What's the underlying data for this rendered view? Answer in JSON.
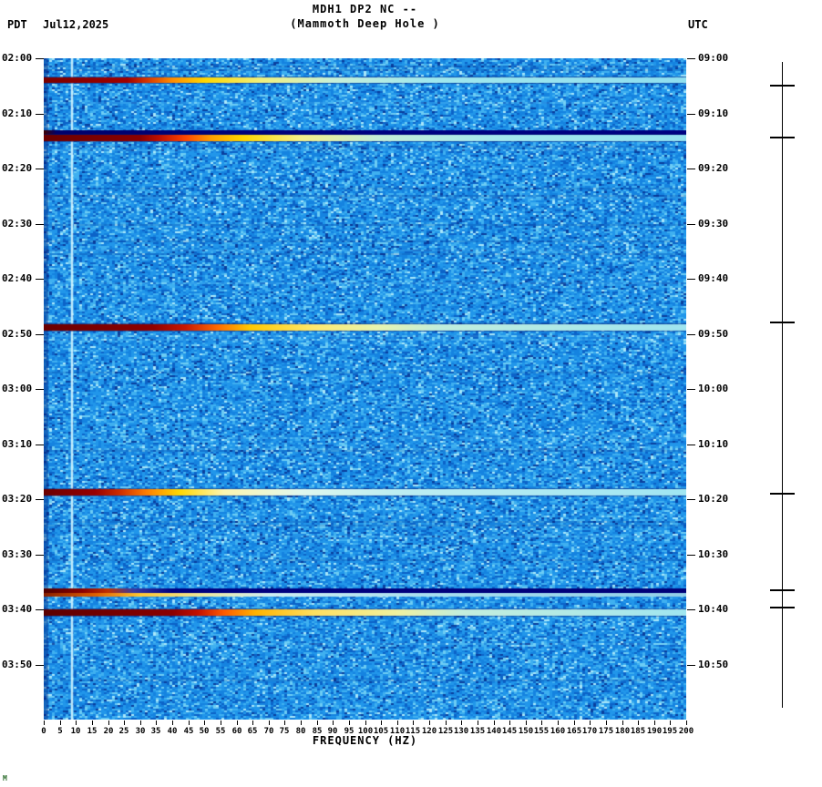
{
  "header": {
    "title": "MDH1 DP2 NC --",
    "subtitle": "(Mammoth Deep Hole )",
    "left_tz": "PDT",
    "date": "Jul12,2025",
    "right_tz": "UTC"
  },
  "axes": {
    "left_labels": [
      "02:00",
      "02:10",
      "02:20",
      "02:30",
      "02:40",
      "02:50",
      "03:00",
      "03:10",
      "03:20",
      "03:30",
      "03:40",
      "03:50"
    ],
    "right_labels": [
      "09:00",
      "09:10",
      "09:20",
      "09:30",
      "09:40",
      "09:50",
      "10:00",
      "10:10",
      "10:20",
      "10:30",
      "10:40",
      "10:50"
    ],
    "freq_labels": [
      "0",
      "5",
      "10",
      "15",
      "20",
      "25",
      "30",
      "35",
      "40",
      "45",
      "50",
      "55",
      "60",
      "65",
      "70",
      "75",
      "80",
      "85",
      "90",
      "95",
      "100",
      "105",
      "110",
      "115",
      "120",
      "125",
      "130",
      "135",
      "140",
      "145",
      "150",
      "155",
      "160",
      "165",
      "170",
      "175",
      "180",
      "185",
      "190",
      "195",
      "200"
    ],
    "xlabel": "FREQUENCY (HZ)"
  },
  "footer_mark": "M",
  "chart_data": {
    "type": "heatmap",
    "title": "MDH1 DP2 NC -- (Mammoth Deep Hole ) seismic spectrogram",
    "x_axis": {
      "label": "FREQUENCY (HZ)",
      "min": 0,
      "max": 200,
      "tick_step": 5
    },
    "y_axis_left": {
      "timezone": "PDT",
      "date": "Jul12,2025",
      "start": "02:00",
      "end": "04:00",
      "tick_step_minutes": 10
    },
    "y_axis_right": {
      "timezone": "UTC",
      "start": "09:00",
      "end": "11:00",
      "tick_step_minutes": 10
    },
    "background": {
      "base_color": "#1583e0",
      "noise_seed": 1234,
      "noise_palette": [
        [
          0.04,
          "#0a3f9e"
        ],
        [
          0.18,
          "#0c63c8"
        ],
        [
          0.45,
          "#1583e0"
        ],
        [
          0.72,
          "#2196ea"
        ],
        [
          0.88,
          "#3fb0f0"
        ],
        [
          0.97,
          "#6cccf4"
        ],
        [
          1.01,
          "#a8e6fa"
        ]
      ]
    },
    "tone_line": {
      "freq_hz": 8.5,
      "color": "rgba(210,245,255,0.85)"
    },
    "events": [
      {
        "label": "event 02:04 PDT",
        "time_min": 3.5,
        "height": 6,
        "edge": true,
        "stops": [
          [
            0,
            "#7a0000"
          ],
          [
            0.13,
            "#a00000"
          ],
          [
            0.16,
            "#d43500"
          ],
          [
            0.2,
            "#ff8c00"
          ],
          [
            0.25,
            "#ffd700"
          ],
          [
            0.34,
            "#f0f080"
          ],
          [
            0.45,
            "#c8f0d8"
          ],
          [
            0.6,
            "#a0e8ee"
          ],
          [
            1,
            "#8fdff0"
          ]
        ]
      },
      {
        "label": "navy band 02:13 PDT",
        "time_min": 13.0,
        "height": 5,
        "edge": false,
        "stops": [
          [
            0,
            "#400000"
          ],
          [
            0.02,
            "#00006b"
          ],
          [
            0.5,
            "#000080"
          ],
          [
            1,
            "#000080"
          ]
        ]
      },
      {
        "label": "event 02:14 PDT",
        "time_min": 13.9,
        "height": 7,
        "edge": true,
        "stops": [
          [
            0,
            "#6b0000"
          ],
          [
            0.15,
            "#8b0000"
          ],
          [
            0.18,
            "#c01000"
          ],
          [
            0.22,
            "#ff4500"
          ],
          [
            0.26,
            "#ff9e00"
          ],
          [
            0.31,
            "#ffd700"
          ],
          [
            0.4,
            "#f5f08a"
          ],
          [
            0.52,
            "#c5eed8"
          ],
          [
            0.7,
            "#a5e8ee"
          ],
          [
            1,
            "#93e0f0"
          ]
        ]
      },
      {
        "label": "event 02:48 PDT",
        "time_min": 48.3,
        "height": 7,
        "edge": true,
        "stops": [
          [
            0,
            "#6b0000"
          ],
          [
            0.17,
            "#900000"
          ],
          [
            0.22,
            "#c81800"
          ],
          [
            0.27,
            "#ff6a00"
          ],
          [
            0.32,
            "#ffc800"
          ],
          [
            0.42,
            "#ffe96e"
          ],
          [
            0.52,
            "#e8f5b0"
          ],
          [
            0.62,
            "#c0eedd"
          ],
          [
            1,
            "#9fe5f0"
          ]
        ]
      },
      {
        "label": "event 03:18 PDT",
        "time_min": 78.2,
        "height": 7,
        "edge": true,
        "stops": [
          [
            0,
            "#6b0000"
          ],
          [
            0.08,
            "#980000"
          ],
          [
            0.12,
            "#d03000"
          ],
          [
            0.16,
            "#ff7f00"
          ],
          [
            0.21,
            "#ffd700"
          ],
          [
            0.28,
            "#fdf6b0"
          ],
          [
            0.4,
            "#e0f8ee"
          ],
          [
            0.55,
            "#bceef2"
          ],
          [
            1,
            "#a0e6f2"
          ]
        ]
      },
      {
        "label": "navy band 03:36 PDT",
        "time_min": 96.2,
        "height": 5,
        "edge": false,
        "stops": [
          [
            0,
            "#500000"
          ],
          [
            0.06,
            "#8b0000"
          ],
          [
            0.1,
            "#c03000"
          ],
          [
            0.14,
            "#3a3aa0"
          ],
          [
            0.2,
            "#000080"
          ],
          [
            1,
            "#000078"
          ]
        ]
      },
      {
        "label": "pale band 03:37 PDT",
        "time_min": 97.1,
        "height": 4,
        "edge": false,
        "stops": [
          [
            0,
            "#8b2000"
          ],
          [
            0.08,
            "#e06000"
          ],
          [
            0.15,
            "#ffc832"
          ],
          [
            0.25,
            "#efe9a0"
          ],
          [
            0.35,
            "#cfeef2"
          ],
          [
            0.6,
            "#a8dff0"
          ],
          [
            1,
            "#92cfe8"
          ]
        ]
      },
      {
        "label": "event 03:40 PDT",
        "time_min": 100.0,
        "height": 7,
        "edge": true,
        "stops": [
          [
            0,
            "#5c0000"
          ],
          [
            0.2,
            "#8b0000"
          ],
          [
            0.24,
            "#c41000"
          ],
          [
            0.28,
            "#ff5a00"
          ],
          [
            0.33,
            "#ffb400"
          ],
          [
            0.42,
            "#ffe060"
          ],
          [
            0.55,
            "#f0f2a0"
          ],
          [
            0.65,
            "#c4eedd"
          ],
          [
            1,
            "#a0e6f0"
          ]
        ]
      }
    ],
    "event_markers_min": [
      4.8,
      14.2,
      47.8,
      78.8,
      96.3,
      99.5
    ]
  }
}
